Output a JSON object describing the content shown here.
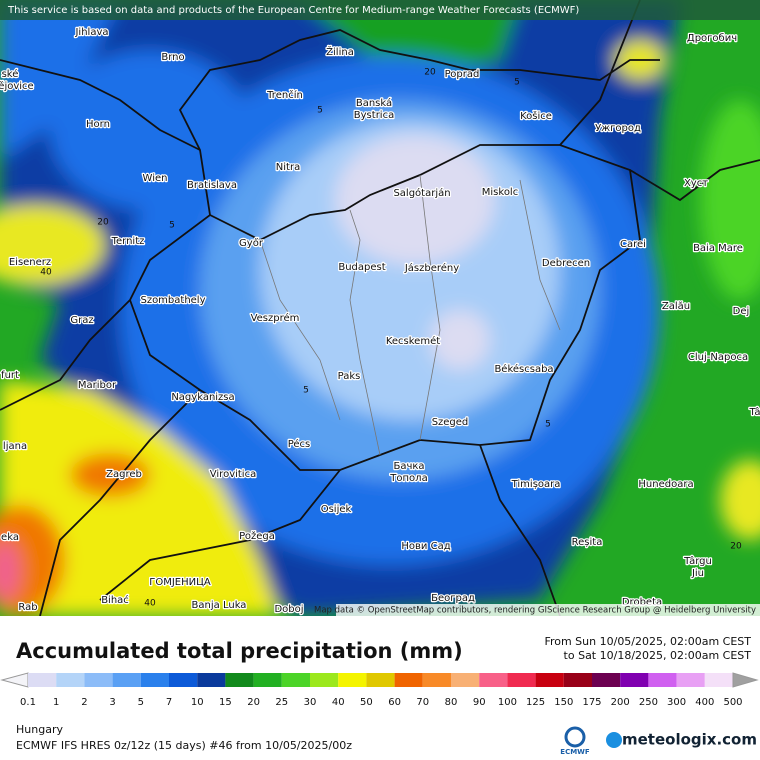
{
  "attribution": "This service is based on data and products of the European Centre for Medium-range Weather Forecasts (ECMWF)",
  "map_credit": "Map data © OpenStreetMap contributors, rendering GIScience Research Group @ Heidelberg University",
  "places": [
    "Jihlava",
    "Brno",
    "Žilina",
    "Poprad",
    "Дрогобич",
    "ské",
    "ějovice",
    "Horn",
    "Trenčín",
    "Banská",
    "Bystrica",
    "Košice",
    "Ужгород",
    "Nitra",
    "Wien",
    "Bratislava",
    "Salgótarján",
    "Miskolc",
    "Хуст",
    "Ternitz",
    "Győr",
    "Budapest",
    "Jászberény",
    "Debrecen",
    "Carei",
    "Baia Mare",
    "Eisenerz",
    "Szombathely",
    "Graz",
    "Veszprém",
    "Zalău",
    "Dej",
    "Kecskemét",
    "Cluj-Napoca",
    "furt",
    "Paks",
    "Békéscsaba",
    "Maribor",
    "Nagykanizsa",
    "Szeged",
    "Tâ",
    "ljana",
    "Pécs",
    "Zagreb",
    "Virovitica",
    "Бачка",
    "Топола",
    "Timișoara",
    "Hunedoara",
    "Osijek",
    "Požega",
    "Reșita",
    "Нови Сад",
    "Târgu",
    "Jiu",
    "ГОМЈЕНИЦА",
    "Bihać",
    "Banja Luka",
    "Doboj",
    "Београд",
    "Drobeta",
    "Rab",
    "eka"
  ],
  "contour_labels": [
    20,
    40,
    5,
    5,
    5,
    5,
    20,
    20,
    40,
    5
  ],
  "title": "Accumulated total precipitation (mm)",
  "period": {
    "from": "From Sun 10/05/2025, 02:00am CEST",
    "to": "to Sat 10/18/2025, 02:00am CEST"
  },
  "legend": {
    "labels": [
      0.1,
      1,
      2,
      3,
      5,
      7,
      10,
      15,
      20,
      25,
      30,
      40,
      50,
      60,
      70,
      80,
      90,
      100,
      125,
      150,
      175,
      200,
      250,
      300,
      400,
      500
    ],
    "colors": [
      "#f4f4f8",
      "#dcdcf4",
      "#b4d4f8",
      "#8cbcf8",
      "#5aa0f4",
      "#2a80ec",
      "#0c5ad8",
      "#0a3a9c",
      "#128a1c",
      "#22b022",
      "#4cd428",
      "#9ce81c",
      "#f4f400",
      "#e0c800",
      "#f06400",
      "#f88a28",
      "#f8b074",
      "#f86088",
      "#f02a50",
      "#c80010",
      "#980018",
      "#6c0050",
      "#8000b0",
      "#d060f0",
      "#e8a0f4",
      "#f4e0f8",
      "#d4d4d4",
      "#a0a0a0"
    ]
  },
  "region": "Hungary",
  "model_run": "ECMWF IFS HRES 0z/12z (15 days) #46 from  10/05/2025/00z",
  "logos": {
    "ecmwf": "ECMWF",
    "meteologix": "meteologix.com"
  }
}
